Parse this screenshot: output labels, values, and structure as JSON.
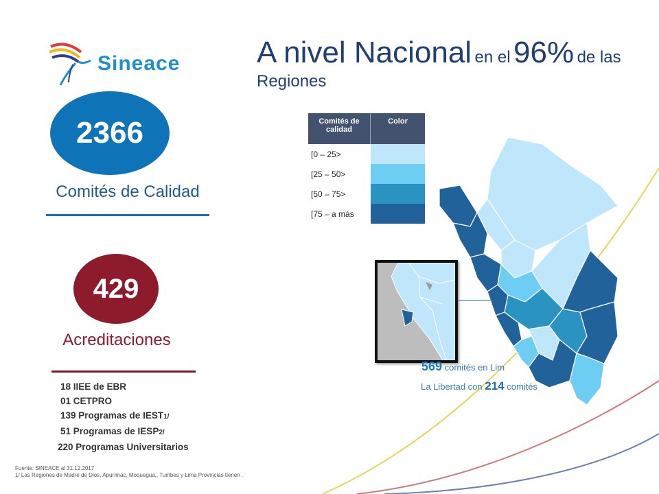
{
  "logo": {
    "name": "Sineace"
  },
  "title": {
    "part1": "A nivel Nacional",
    "part2": "en el",
    "part3": "96%",
    "part4": "de las",
    "part5": "Regiones"
  },
  "comites": {
    "value": "2366",
    "label": "Comités de Calidad"
  },
  "acreditaciones": {
    "value": "429",
    "label": "Acreditaciones",
    "items": [
      {
        "text": "18 IIEE de EBR",
        "note": ""
      },
      {
        "text": "01 CETPRO",
        "note": ""
      },
      {
        "text": "139 Programas de IEST",
        "note": "1/"
      },
      {
        "text": "51 Programas de IESP",
        "note": "2/"
      },
      {
        "text": "220 Programas Universitarios",
        "note": ""
      }
    ]
  },
  "legend": {
    "col1": "Comités de calidad",
    "col2": "Color",
    "rows": [
      {
        "range": "[0 – 25>",
        "color": "#bfe6fa"
      },
      {
        "range": "[25 – 50>",
        "color": "#6dcdf3"
      },
      {
        "range": "[50 – 75>",
        "color": "#2b93c2"
      },
      {
        "range": "[75 – a más",
        "color": "#22629b"
      }
    ]
  },
  "callouts": {
    "lima_num": "569",
    "lima_text": "comités en Lim",
    "lib_prefix": "La Libertad con",
    "lib_num": "214",
    "lib_text": "comités"
  },
  "source": {
    "line1": "Fuente: SINEACE al 31.12.2017",
    "line2": "1/ Las Regiones de Madre de Dios, Apurímac, Moquegua,, Tumbes y Lima Provincias tienen ."
  }
}
